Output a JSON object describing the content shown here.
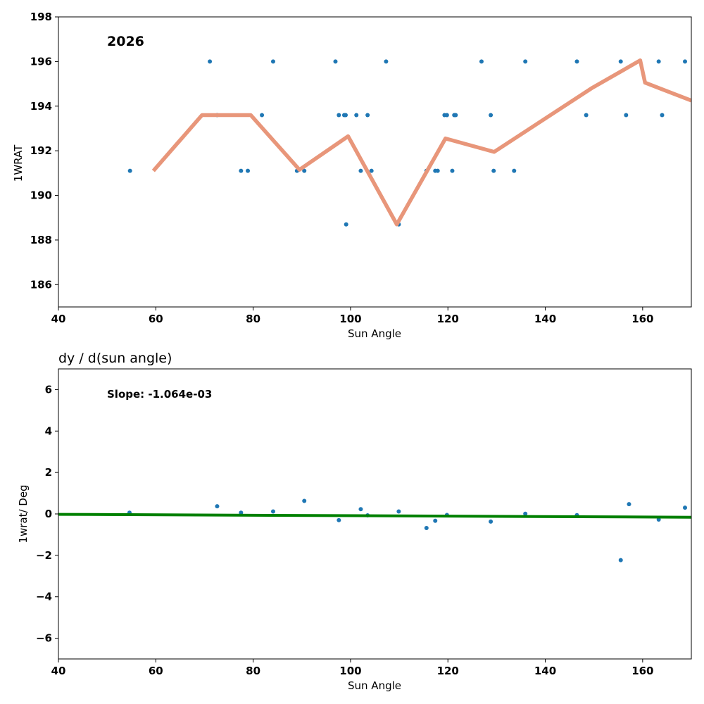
{
  "colors": {
    "points": "#1f77b4",
    "trend_line": "#e8967a",
    "fit_line": "#008000"
  },
  "chart_data": [
    {
      "type": "scatter",
      "title": "",
      "annotation": "2026",
      "xlabel": "Sun Angle",
      "ylabel": "1WRAT",
      "xlim": [
        40,
        170
      ],
      "ylim": [
        185,
        198
      ],
      "xticks": [
        40,
        60,
        80,
        100,
        120,
        140,
        160
      ],
      "yticks": [
        186,
        188,
        190,
        192,
        194,
        196,
        198
      ],
      "grid": false,
      "series": [
        {
          "name": "points",
          "kind": "scatter",
          "x": [
            54.7,
            71.1,
            72.6,
            77.5,
            78.9,
            81.8,
            84.1,
            89.0,
            90.5,
            96.9,
            97.6,
            98.7,
            99.0,
            99.1,
            101.2,
            102.1,
            103.5,
            104.3,
            107.3,
            109.9,
            115.6,
            117.4,
            117.9,
            119.3,
            119.8,
            120.9,
            121.3,
            121.6,
            126.9,
            128.8,
            129.4,
            133.6,
            135.9,
            146.5,
            148.4,
            155.5,
            156.6,
            163.3,
            164.0,
            168.7
          ],
          "y": [
            191.1,
            196.0,
            193.6,
            191.1,
            191.1,
            193.6,
            196.0,
            191.1,
            191.1,
            196.0,
            193.6,
            193.6,
            193.6,
            188.7,
            193.6,
            191.1,
            193.6,
            191.1,
            196.0,
            188.7,
            191.1,
            191.1,
            191.1,
            193.6,
            193.6,
            191.1,
            193.6,
            193.6,
            196.0,
            193.6,
            191.1,
            191.1,
            196.0,
            196.0,
            193.6,
            196.0,
            193.6,
            196.0,
            193.6,
            196.0
          ]
        },
        {
          "name": "binned mean",
          "kind": "line",
          "x": [
            59.5,
            69.5,
            79.5,
            89.5,
            99.5,
            109.5,
            119.5,
            129.5,
            149.5,
            159.5,
            160.5,
            170
          ],
          "y": [
            191.1,
            193.6,
            193.6,
            191.15,
            192.65,
            188.7,
            192.55,
            191.95,
            194.8,
            196.05,
            195.05,
            194.25
          ]
        }
      ]
    },
    {
      "type": "scatter",
      "title": "dy / d(sun angle)",
      "annotation": "Slope: -1.064e-03",
      "xlabel": "Sun Angle",
      "ylabel": "1wrat/ Deg",
      "xlim": [
        40,
        170
      ],
      "ylim": [
        -7,
        7
      ],
      "xticks": [
        40,
        60,
        80,
        100,
        120,
        140,
        160
      ],
      "yticks": [
        -6,
        -4,
        -2,
        0,
        2,
        4,
        6
      ],
      "grid": false,
      "series": [
        {
          "name": "derivative",
          "kind": "scatter",
          "x": [
            54.6,
            72.6,
            77.5,
            84.1,
            90.5,
            97.6,
            102.1,
            103.5,
            109.9,
            115.6,
            117.4,
            119.8,
            128.8,
            135.9,
            146.5,
            155.5,
            157.2,
            163.3,
            168.7
          ],
          "y": [
            0.06,
            0.37,
            0.06,
            0.12,
            0.63,
            -0.3,
            0.23,
            -0.07,
            0.12,
            -0.68,
            -0.33,
            -0.05,
            -0.37,
            0.01,
            -0.06,
            -2.23,
            0.47,
            -0.27,
            0.3
          ]
        },
        {
          "name": "linear fit",
          "kind": "line",
          "x": [
            40,
            170
          ],
          "y": [
            -0.02,
            -0.16
          ]
        }
      ]
    }
  ]
}
